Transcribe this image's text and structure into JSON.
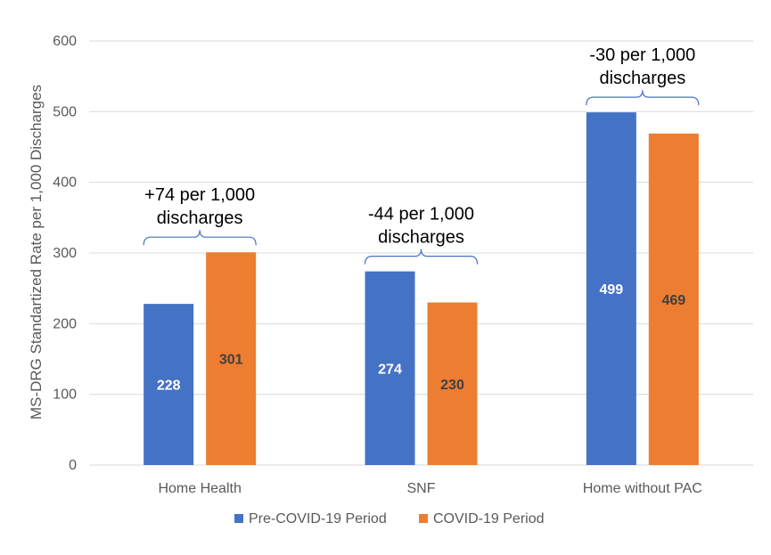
{
  "chart_data": {
    "type": "bar",
    "categories": [
      "Home Health",
      "SNF",
      "Home without PAC"
    ],
    "series": [
      {
        "name": "Pre-COVID-19 Period",
        "values": [
          228,
          274,
          499
        ],
        "color": "#4472C4",
        "label_color": "#ffffff"
      },
      {
        "name": "COVID-19 Period",
        "values": [
          301,
          230,
          469
        ],
        "color": "#ED7D31",
        "label_color": "#404040"
      }
    ],
    "ylabel": "MS-DRG Standartized Rate per 1,000 Discharges",
    "xlabel": "",
    "ylim": [
      0,
      600
    ],
    "yticks": [
      0,
      100,
      200,
      300,
      400,
      500,
      600
    ],
    "grid": true,
    "legend": "bottom",
    "annotations": [
      {
        "category": "Home Health",
        "lines": [
          "+74 per 1,000",
          "discharges"
        ]
      },
      {
        "category": "SNF",
        "lines": [
          "-44 per 1,000",
          "discharges"
        ]
      },
      {
        "category": "Home without PAC",
        "lines": [
          "-30 per 1,000",
          "discharges"
        ]
      }
    ]
  }
}
